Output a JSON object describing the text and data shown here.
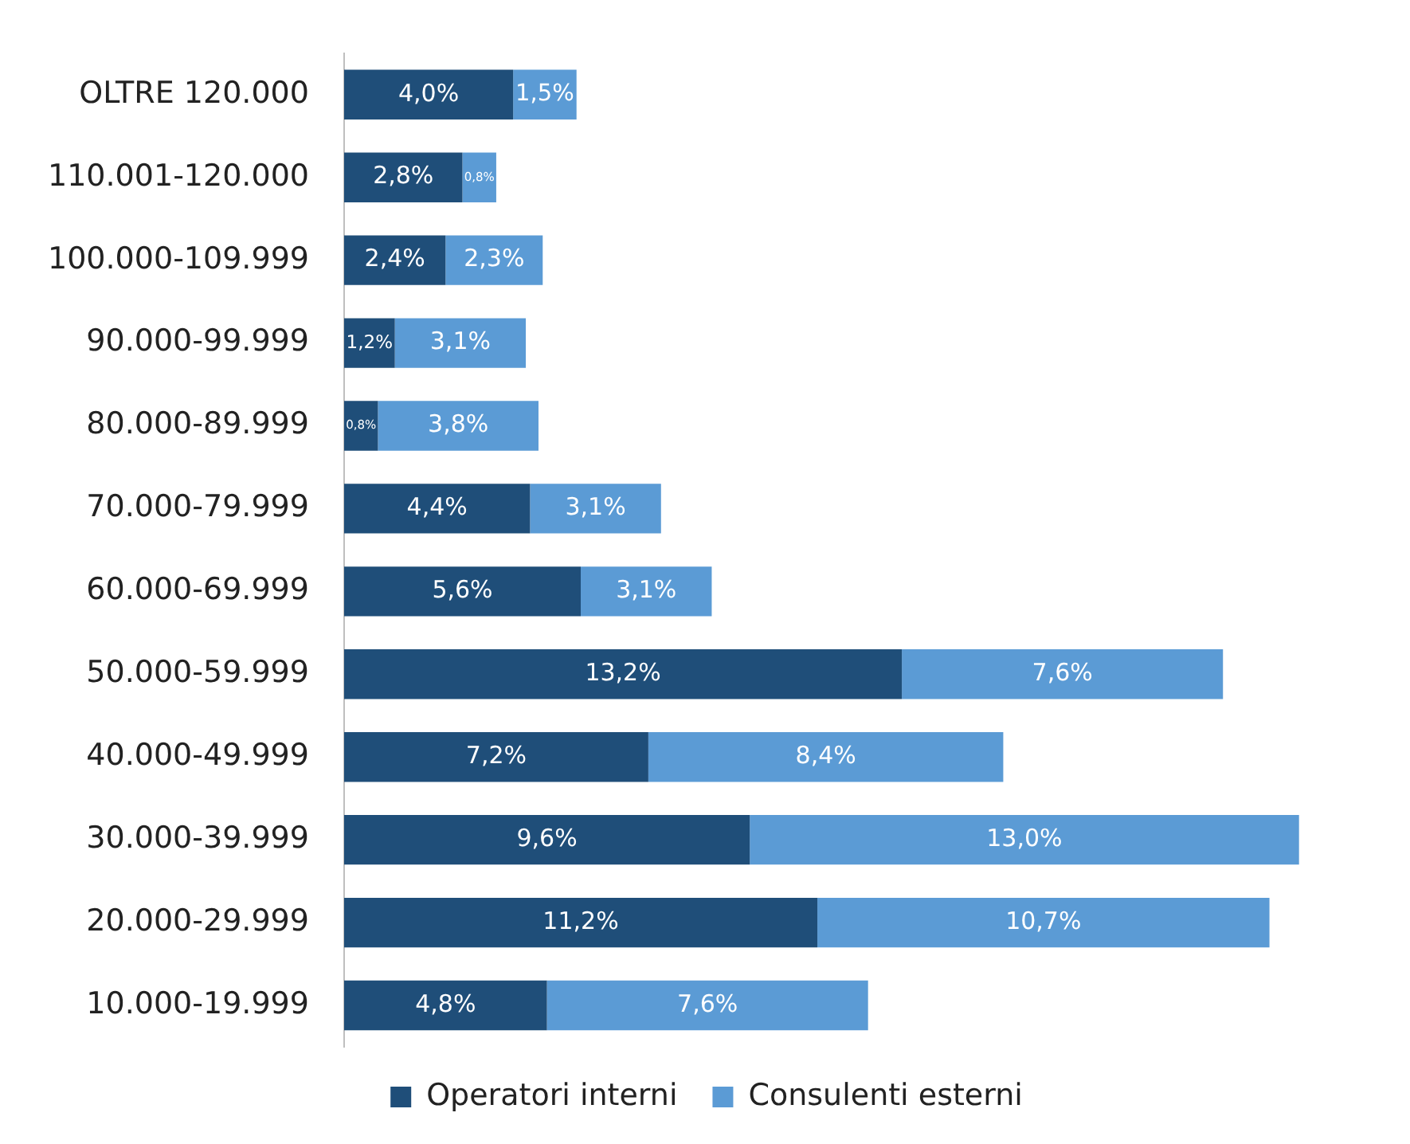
{
  "chart_data": {
    "type": "bar",
    "orientation": "horizontal",
    "stacked": true,
    "legend": "bottom",
    "grid": false,
    "categories": [
      "OLTRE 120.000",
      "110.001-120.000",
      "100.000-109.999",
      "90.000-99.999",
      "80.000-89.999",
      "70.000-79.999",
      "60.000-69.999",
      "50.000-59.999",
      "40.000-49.999",
      "30.000-39.999",
      "20.000-29.999",
      "10.000-19.999"
    ],
    "series": [
      {
        "name": "Operatori interni",
        "color": "#1f4e79",
        "values": [
          4.0,
          2.8,
          2.4,
          1.2,
          0.8,
          4.4,
          5.6,
          13.2,
          7.2,
          9.6,
          11.2,
          4.8
        ],
        "value_labels": [
          "4,0%",
          "2,8%",
          "2,4%",
          "1,2%",
          "0,8%",
          "4,4%",
          "5,6%",
          "13,2%",
          "7,2%",
          "9,6%",
          "11,2%",
          "4,8%"
        ]
      },
      {
        "name": "Consulenti esterni",
        "color": "#5b9bd5",
        "values": [
          1.5,
          0.8,
          2.3,
          3.1,
          3.8,
          3.1,
          3.1,
          7.6,
          8.4,
          13.0,
          10.7,
          7.6
        ],
        "value_labels": [
          "1,5%",
          "0,8%",
          "2,3%",
          "3,1%",
          "3,8%",
          "3,1%",
          "3,1%",
          "7,6%",
          "8,4%",
          "13,0%",
          "10,7%",
          "7,6%"
        ]
      }
    ]
  }
}
